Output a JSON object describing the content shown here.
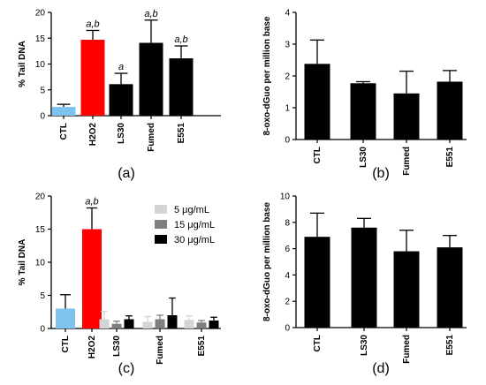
{
  "chart_data": [
    {
      "id": "a",
      "type": "bar",
      "panel_label": "(a)",
      "ylabel": "% Tail DNA",
      "ylim": [
        0,
        20
      ],
      "yticks": [
        0,
        5,
        10,
        15,
        20
      ],
      "categories": [
        "CTL",
        "H2O2",
        "LS30",
        "Fumed",
        "E551"
      ],
      "values": [
        1.7,
        14.7,
        6.1,
        14.1,
        11.1
      ],
      "errors": [
        0.5,
        1.8,
        2.1,
        4.4,
        2.4
      ],
      "colors": [
        "#7ec3ef",
        "#ff0000",
        "#000000",
        "#000000",
        "#000000"
      ],
      "annotations": [
        "",
        "a,b",
        "a",
        "a,b",
        "a,b"
      ]
    },
    {
      "id": "b",
      "type": "bar",
      "panel_label": "(b)",
      "ylabel": "8-oxo-dGuo per million base",
      "ylim": [
        0,
        4
      ],
      "yticks": [
        0,
        1,
        2,
        3,
        4
      ],
      "categories": [
        "CTL",
        "LS30",
        "Fumed",
        "E551"
      ],
      "values": [
        2.38,
        1.77,
        1.45,
        1.82
      ],
      "errors": [
        0.75,
        0.05,
        0.7,
        0.35
      ],
      "colors": [
        "#000000",
        "#000000",
        "#000000",
        "#000000"
      ]
    },
    {
      "id": "c",
      "type": "bar",
      "panel_label": "(c)",
      "ylabel": "% Tail DNA",
      "ylim": [
        0,
        20
      ],
      "yticks": [
        0,
        5,
        10,
        15,
        20
      ],
      "single": [
        {
          "category": "CTL",
          "value": 3.0,
          "error": 2.1,
          "color": "#7ec3ef"
        },
        {
          "category": "H2O2",
          "value": 15.0,
          "error": 3.2,
          "color": "#ff0000",
          "annotation": "a,b"
        }
      ],
      "groups": [
        "LS30",
        "Fumed",
        "E551"
      ],
      "series": [
        {
          "name": "5 μg/mL",
          "color": "#d4d4d4",
          "values": [
            1.4,
            1.0,
            1.3
          ],
          "errors": [
            1.2,
            0.8,
            0.6
          ]
        },
        {
          "name": "15 μg/mL",
          "color": "#7f7f7f",
          "values": [
            0.7,
            1.4,
            0.9
          ],
          "errors": [
            0.4,
            0.6,
            0.3
          ]
        },
        {
          "name": "30 μg/mL",
          "color": "#000000",
          "values": [
            1.4,
            2.0,
            1.2
          ],
          "errors": [
            0.5,
            2.6,
            0.5
          ]
        }
      ],
      "legend_position": "top-right"
    },
    {
      "id": "d",
      "type": "bar",
      "panel_label": "(d)",
      "ylabel": "8-oxo-dGuo per million base",
      "ylim": [
        0,
        10
      ],
      "yticks": [
        0,
        2,
        4,
        6,
        8,
        10
      ],
      "categories": [
        "CTL",
        "LS30",
        "Fumed",
        "E551"
      ],
      "values": [
        6.9,
        7.6,
        5.8,
        6.1
      ],
      "errors": [
        1.8,
        0.7,
        1.6,
        0.9
      ],
      "colors": [
        "#000000",
        "#000000",
        "#000000",
        "#000000"
      ]
    }
  ]
}
